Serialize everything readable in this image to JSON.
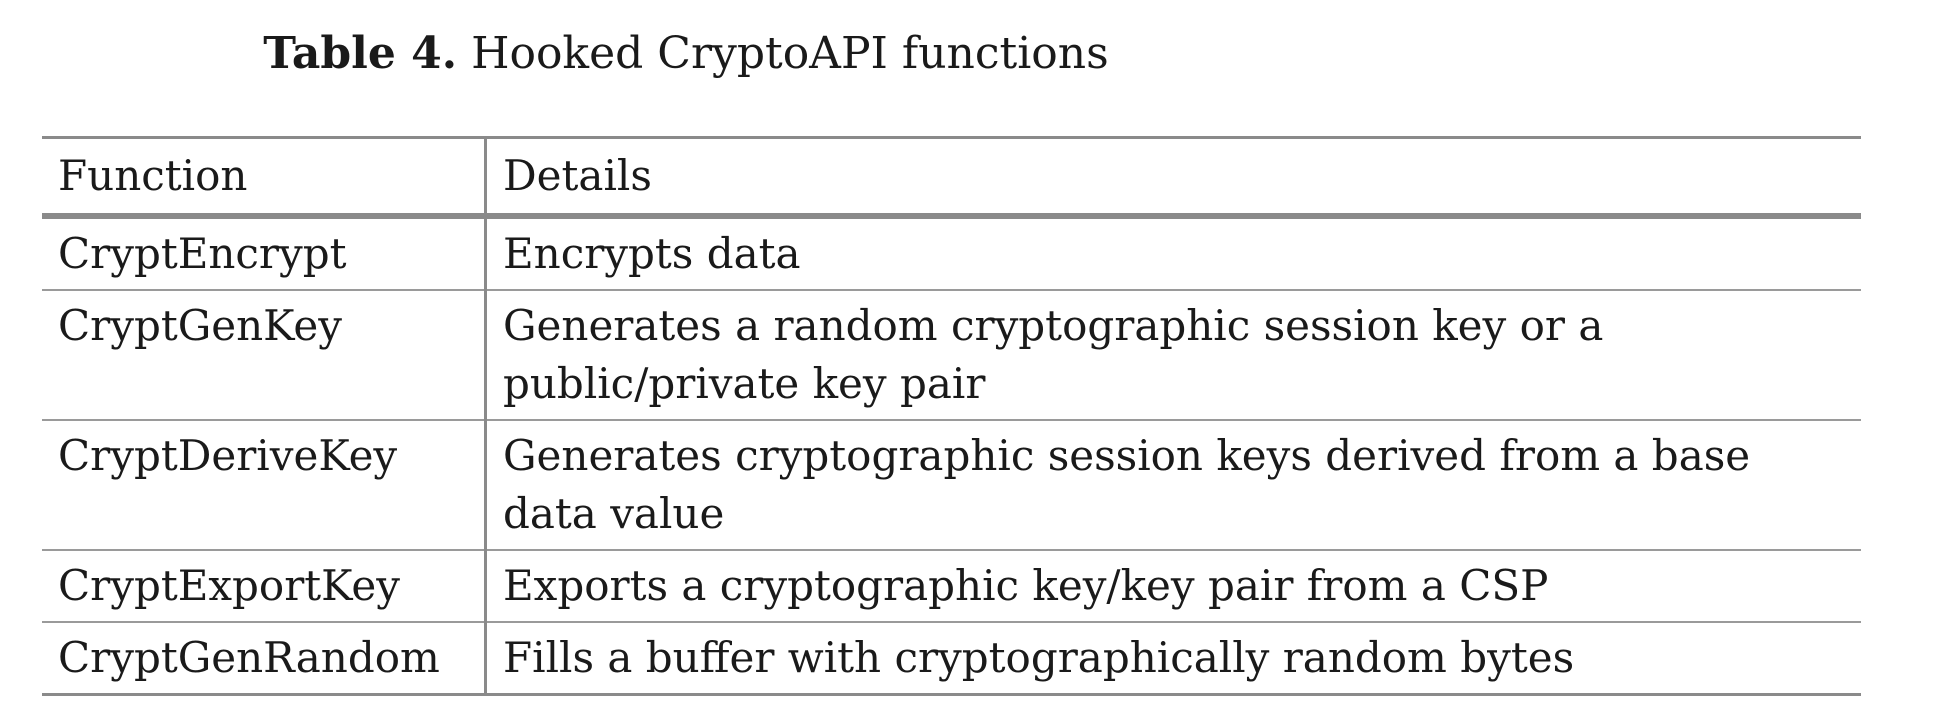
{
  "caption": {
    "label": "Table 4.",
    "text": "Hooked CryptoAPI functions"
  },
  "table": {
    "headers": [
      "Function",
      "Details"
    ],
    "rows": [
      {
        "function": "CryptEncrypt",
        "details": [
          "Encrypts data"
        ]
      },
      {
        "function": "CryptGenKey",
        "details": [
          "Generates a random cryptographic session key or a",
          "public/private key pair"
        ]
      },
      {
        "function": "CryptDeriveKey",
        "details": [
          "Generates cryptographic session keys derived from a base",
          "data value"
        ]
      },
      {
        "function": "CryptExportKey",
        "details": [
          "Exports a cryptographic key/key pair from a CSP"
        ]
      },
      {
        "function": "CryptGenRandom",
        "details": [
          "Fills a buffer with cryptographically random bytes"
        ]
      }
    ]
  }
}
